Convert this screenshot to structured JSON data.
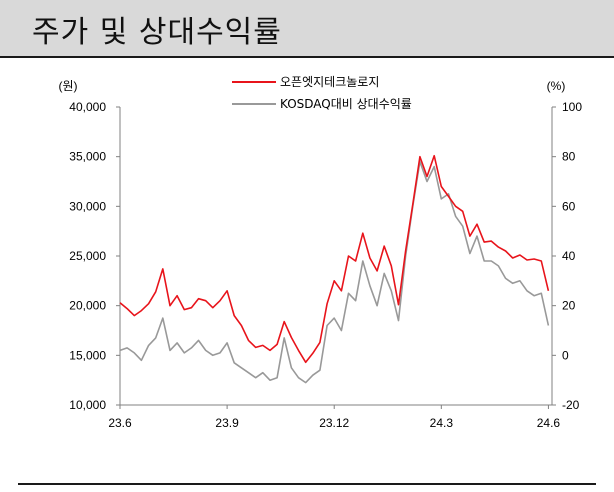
{
  "title": "주가 및 상대수익률",
  "chart_data": {
    "type": "line",
    "left_axis": {
      "unit": "(원)",
      "range": [
        10000,
        40000
      ],
      "ticks": [
        "40,000",
        "35,000",
        "30,000",
        "25,000",
        "20,000",
        "15,000",
        "10,000"
      ],
      "values": [
        40000,
        35000,
        30000,
        25000,
        20000,
        15000,
        10000
      ]
    },
    "right_axis": {
      "unit": "(%)",
      "range": [
        -20,
        100
      ],
      "ticks": [
        "100",
        "80",
        "60",
        "40",
        "20",
        "0",
        "-20"
      ],
      "values": [
        100,
        80,
        60,
        40,
        20,
        0,
        -20
      ]
    },
    "x_ticks": [
      "23.6",
      "23.9",
      "23.12",
      "24.3",
      "24.6"
    ],
    "x_tick_pos": [
      0,
      3,
      6,
      9,
      12
    ],
    "x_range": [
      0,
      12.1
    ],
    "grid": false,
    "legend_position": "top-center",
    "series": [
      {
        "name": "오픈엣지테크놀로지",
        "axis": "left",
        "color": "#e8141b",
        "x": [
          0,
          0.2,
          0.4,
          0.6,
          0.8,
          1.0,
          1.2,
          1.4,
          1.6,
          1.8,
          2.0,
          2.2,
          2.4,
          2.6,
          2.8,
          3.0,
          3.2,
          3.4,
          3.6,
          3.8,
          4.0,
          4.2,
          4.4,
          4.6,
          4.8,
          5.0,
          5.2,
          5.4,
          5.6,
          5.8,
          6.0,
          6.2,
          6.4,
          6.6,
          6.8,
          7.0,
          7.2,
          7.4,
          7.6,
          7.8,
          8.0,
          8.2,
          8.4,
          8.6,
          8.8,
          9.0,
          9.2,
          9.4,
          9.6,
          9.8,
          10.0,
          10.2,
          10.4,
          10.6,
          10.8,
          11.0,
          11.2,
          11.4,
          11.6,
          11.8,
          12.0
        ],
        "values": [
          20300,
          19700,
          19000,
          19500,
          20200,
          21400,
          23700,
          20000,
          21000,
          19600,
          19800,
          20700,
          20500,
          19800,
          20500,
          21500,
          19000,
          18000,
          16500,
          15800,
          16000,
          15500,
          16100,
          18400,
          16800,
          15500,
          14300,
          15200,
          16300,
          20200,
          22500,
          21500,
          25000,
          24500,
          27300,
          24800,
          23500,
          26000,
          24000,
          20100,
          25500,
          30200,
          35000,
          33000,
          35100,
          32000,
          31000,
          30000,
          29500,
          27000,
          28200,
          26400,
          26500,
          25900,
          25500,
          24800,
          25100,
          24600,
          24700,
          24500,
          21500
        ]
      },
      {
        "name": "KOSDAQ대비 상대수익률",
        "axis": "right",
        "color": "#999999",
        "x": [
          0,
          0.2,
          0.4,
          0.6,
          0.8,
          1.0,
          1.2,
          1.4,
          1.6,
          1.8,
          2.0,
          2.2,
          2.4,
          2.6,
          2.8,
          3.0,
          3.2,
          3.4,
          3.6,
          3.8,
          4.0,
          4.2,
          4.4,
          4.6,
          4.8,
          5.0,
          5.2,
          5.4,
          5.6,
          5.8,
          6.0,
          6.2,
          6.4,
          6.6,
          6.8,
          7.0,
          7.2,
          7.4,
          7.6,
          7.8,
          8.0,
          8.2,
          8.4,
          8.6,
          8.8,
          9.0,
          9.2,
          9.4,
          9.6,
          9.8,
          10.0,
          10.2,
          10.4,
          10.6,
          10.8,
          11.0,
          11.2,
          11.4,
          11.6,
          11.8,
          12.0
        ],
        "values": [
          2,
          3,
          1,
          -2,
          4,
          7,
          15,
          2,
          5,
          1,
          3,
          6,
          2,
          0,
          1,
          5,
          -3,
          -5,
          -7,
          -9,
          -7,
          -10,
          -9,
          7,
          -5,
          -9,
          -11,
          -8,
          -6,
          12,
          15,
          10,
          25,
          22,
          38,
          28,
          20,
          33,
          26,
          14,
          40,
          60,
          78,
          70,
          76,
          63,
          65,
          56,
          52,
          41,
          48,
          38,
          38,
          36,
          31,
          29,
          30,
          26,
          24,
          25,
          12
        ]
      }
    ]
  }
}
